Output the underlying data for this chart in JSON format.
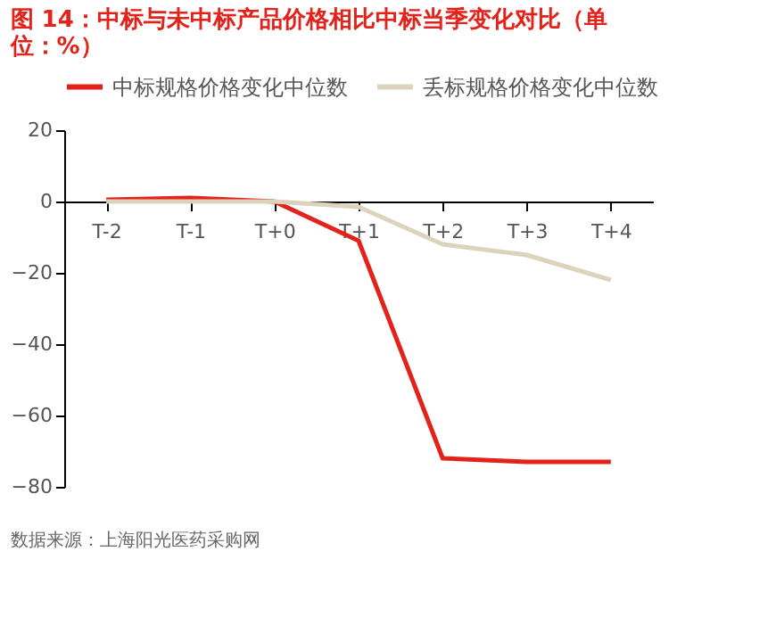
{
  "chart_data": {
    "type": "line",
    "title": [
      "图 14：中标与未中标产品价格相比中标当季变化对比（单",
      "位：%）"
    ],
    "categories": [
      "T-2",
      "T-1",
      "T+0",
      "T+1",
      "T+2",
      "T+3",
      "T+4"
    ],
    "series": [
      {
        "name": "中标规格价格变化中位数",
        "color": "#e3231b",
        "values": [
          0.5,
          1,
          0,
          -11,
          -72,
          -73,
          -73
        ]
      },
      {
        "name": "丢标规格价格变化中位数",
        "color": "#ddd3bd",
        "values": [
          0,
          0,
          0,
          -1.5,
          -12,
          -15,
          -22
        ]
      }
    ],
    "ylim": [
      -80,
      20
    ],
    "yticks": [
      -80,
      -60,
      -40,
      -20,
      0,
      20
    ],
    "grid": false,
    "legend": "top",
    "marker": "none",
    "line_style": "solid",
    "annotations": [
      "数据来源：上海阳光医药采购网"
    ]
  }
}
